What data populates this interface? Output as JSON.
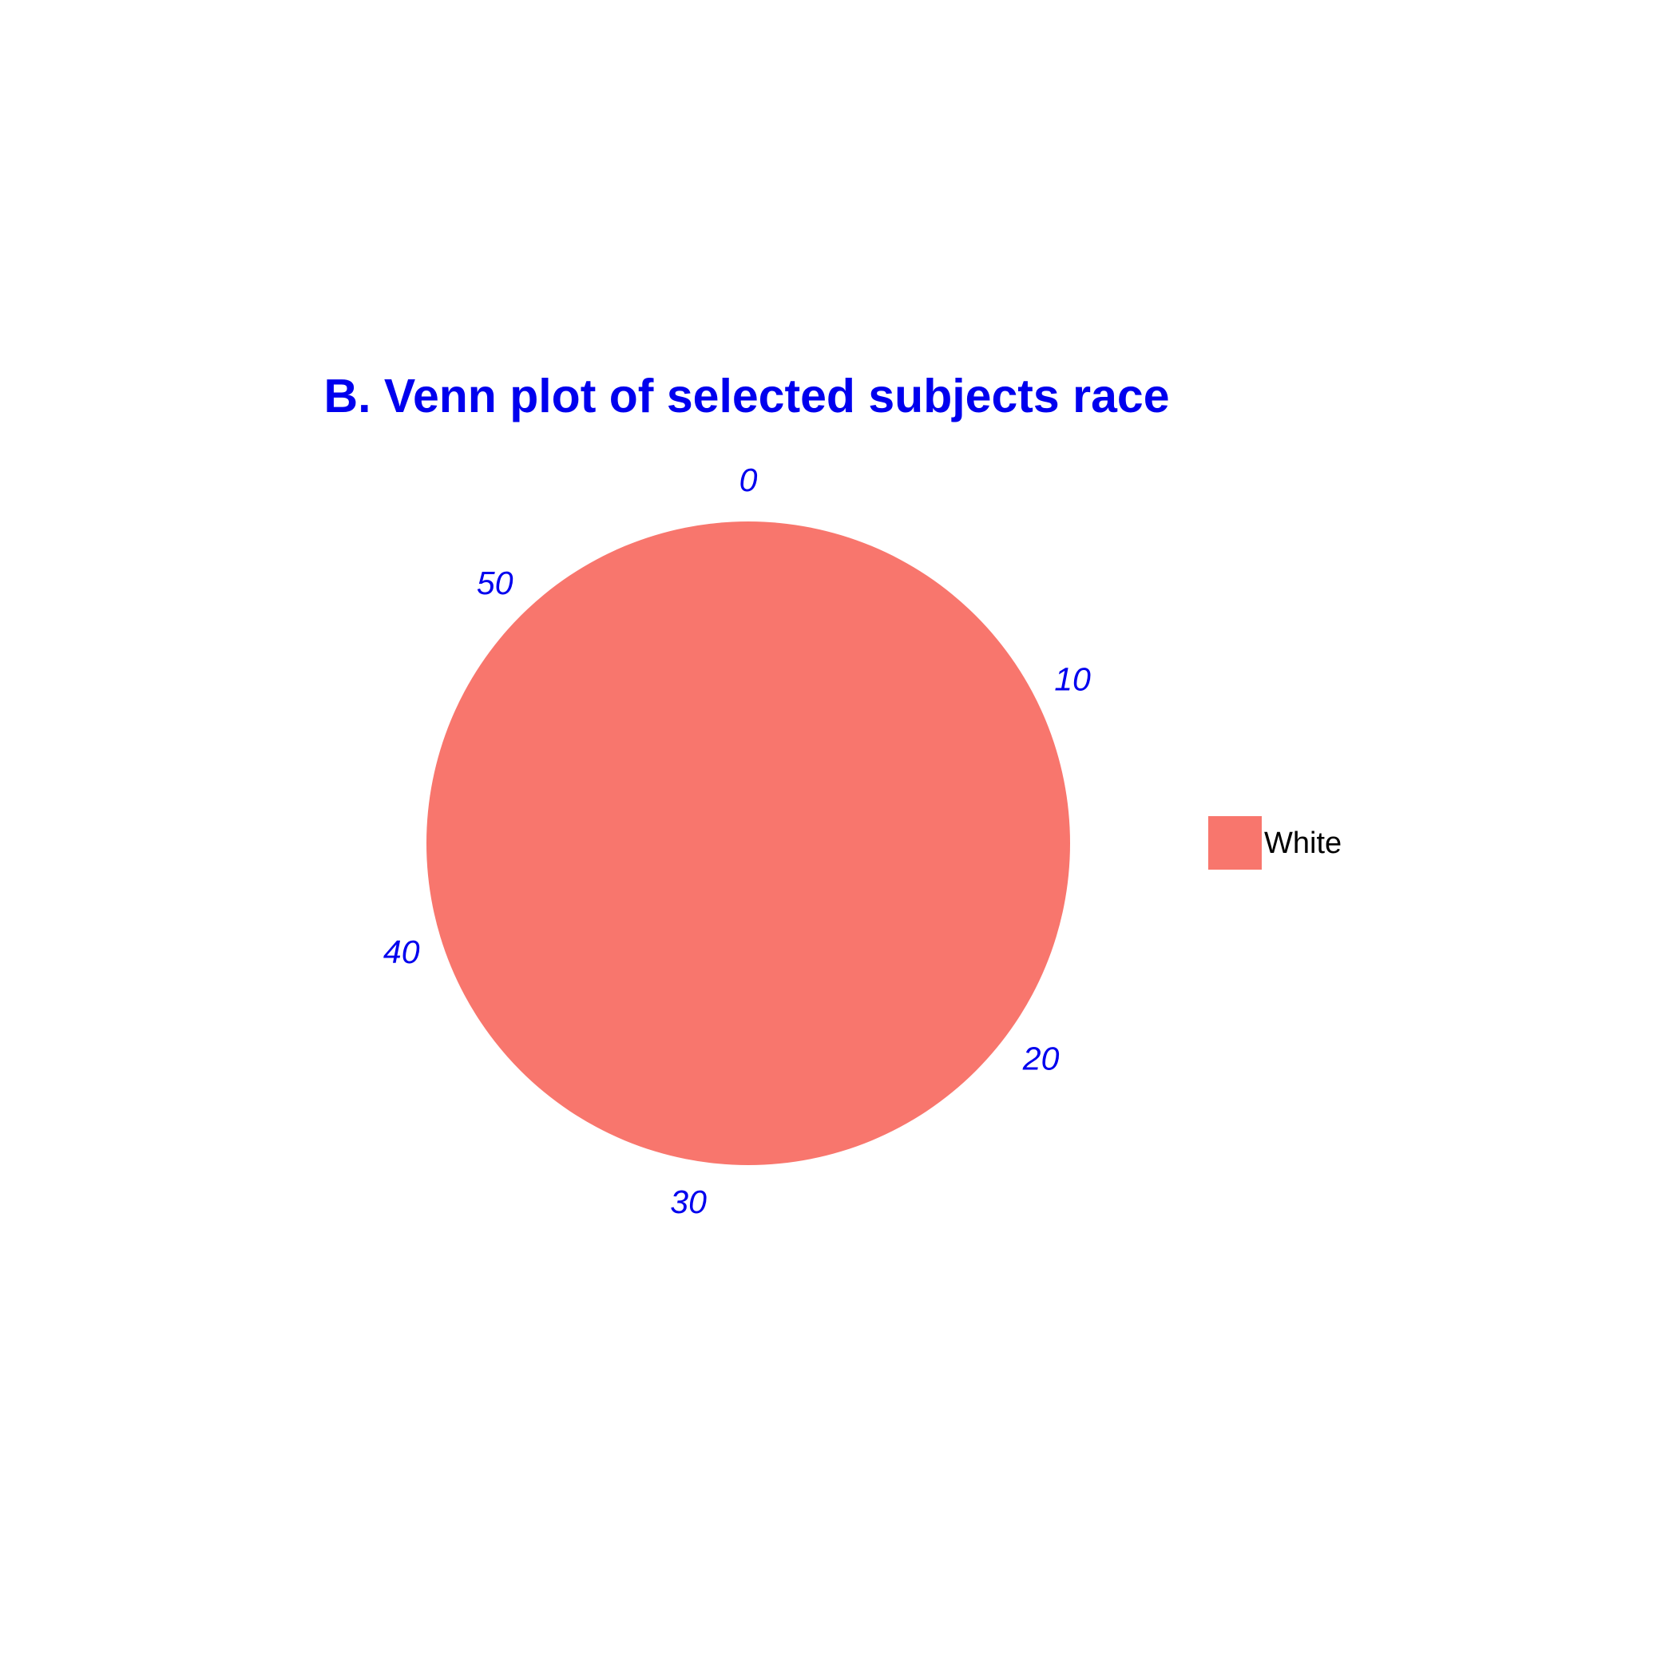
{
  "chart_data": {
    "type": "pie",
    "title": "B. Venn plot of selected subjects race",
    "categories": [
      "White"
    ],
    "values": [
      57
    ],
    "theta_range": [
      0,
      57
    ],
    "theta_ticks": [
      "0",
      "10",
      "20",
      "30",
      "40",
      "50"
    ],
    "legend": {
      "position": "right",
      "entries": [
        "White"
      ]
    },
    "colors": {
      "White": "#f8766d",
      "title": "#0000ee",
      "ticks": "#0000ee"
    }
  }
}
